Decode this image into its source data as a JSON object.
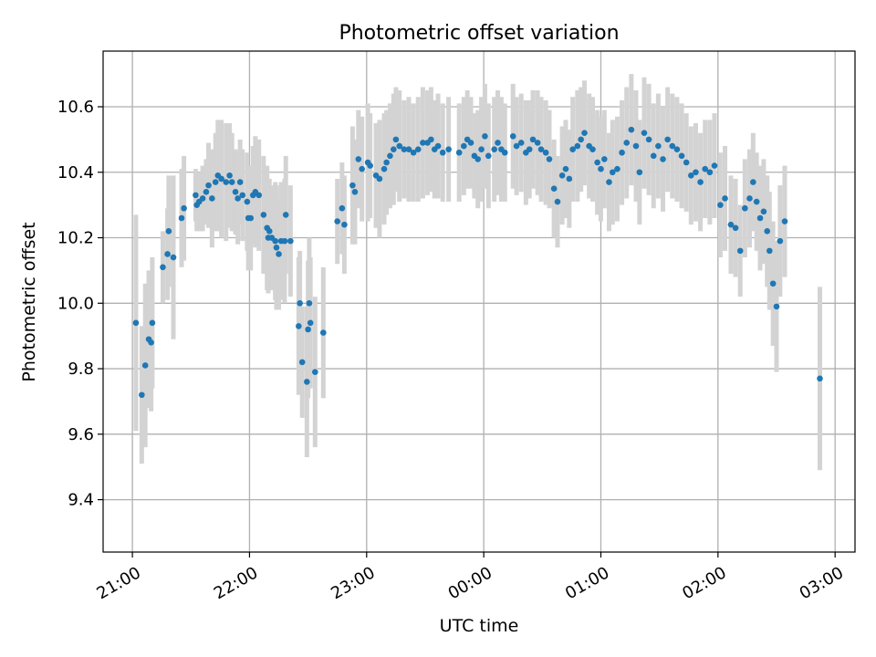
{
  "chart_data": {
    "type": "scatter",
    "title": "Photometric offset variation",
    "xlabel": "UTC time",
    "ylabel": "Photometric offset",
    "x_unit": "hours since 21:00 UTC",
    "xlim": [
      -0.25,
      6.17
    ],
    "ylim": [
      9.24,
      10.77
    ],
    "grid": true,
    "x_ticks": [
      {
        "value": 0,
        "label": "21:00"
      },
      {
        "value": 1,
        "label": "22:00"
      },
      {
        "value": 2,
        "label": "23:00"
      },
      {
        "value": 3,
        "label": "00:00"
      },
      {
        "value": 4,
        "label": "01:00"
      },
      {
        "value": 5,
        "label": "02:00"
      },
      {
        "value": 6,
        "label": "03:00"
      }
    ],
    "y_ticks": [
      {
        "value": 9.4,
        "label": "9.4"
      },
      {
        "value": 9.6,
        "label": "9.6"
      },
      {
        "value": 9.8,
        "label": "9.8"
      },
      {
        "value": 10.0,
        "label": "10.0"
      },
      {
        "value": 10.2,
        "label": "10.2"
      },
      {
        "value": 10.4,
        "label": "10.4"
      },
      {
        "value": 10.6,
        "label": "10.6"
      }
    ],
    "colors": {
      "points": "#1f77b4",
      "errorbars": "#d3d3d3",
      "grid": "#b0b0b0"
    },
    "series": [
      {
        "marker": "point",
        "error_type": "symmetric",
        "points": [
          {
            "x": 0.03,
            "y": 9.94,
            "err": 0.33
          },
          {
            "x": 0.08,
            "y": 9.72,
            "err": 0.21
          },
          {
            "x": 0.11,
            "y": 9.81,
            "err": 0.25
          },
          {
            "x": 0.14,
            "y": 9.89,
            "err": 0.21
          },
          {
            "x": 0.16,
            "y": 9.88,
            "err": 0.21
          },
          {
            "x": 0.17,
            "y": 9.94,
            "err": 0.2
          },
          {
            "x": 0.26,
            "y": 10.11,
            "err": 0.11
          },
          {
            "x": 0.3,
            "y": 10.15,
            "err": 0.14
          },
          {
            "x": 0.31,
            "y": 10.22,
            "err": 0.17
          },
          {
            "x": 0.35,
            "y": 10.14,
            "err": 0.25
          },
          {
            "x": 0.42,
            "y": 10.26,
            "err": 0.15
          },
          {
            "x": 0.44,
            "y": 10.29,
            "err": 0.16
          },
          {
            "x": 0.54,
            "y": 10.33,
            "err": 0.08
          },
          {
            "x": 0.55,
            "y": 10.3,
            "err": 0.08
          },
          {
            "x": 0.57,
            "y": 10.31,
            "err": 0.09
          },
          {
            "x": 0.6,
            "y": 10.32,
            "err": 0.1
          },
          {
            "x": 0.63,
            "y": 10.34,
            "err": 0.1
          },
          {
            "x": 0.65,
            "y": 10.36,
            "err": 0.13
          },
          {
            "x": 0.68,
            "y": 10.32,
            "err": 0.15
          },
          {
            "x": 0.71,
            "y": 10.37,
            "err": 0.15
          },
          {
            "x": 0.73,
            "y": 10.39,
            "err": 0.17
          },
          {
            "x": 0.76,
            "y": 10.38,
            "err": 0.18
          },
          {
            "x": 0.8,
            "y": 10.37,
            "err": 0.18
          },
          {
            "x": 0.83,
            "y": 10.39,
            "err": 0.16
          },
          {
            "x": 0.85,
            "y": 10.37,
            "err": 0.15
          },
          {
            "x": 0.88,
            "y": 10.34,
            "err": 0.13
          },
          {
            "x": 0.9,
            "y": 10.32,
            "err": 0.14
          },
          {
            "x": 0.92,
            "y": 10.37,
            "err": 0.13
          },
          {
            "x": 0.94,
            "y": 10.33,
            "err": 0.14
          },
          {
            "x": 0.98,
            "y": 10.31,
            "err": 0.15
          },
          {
            "x": 0.99,
            "y": 10.26,
            "err": 0.16
          },
          {
            "x": 1.01,
            "y": 10.26,
            "err": 0.16
          },
          {
            "x": 1.03,
            "y": 10.33,
            "err": 0.15
          },
          {
            "x": 1.05,
            "y": 10.34,
            "err": 0.17
          },
          {
            "x": 1.08,
            "y": 10.33,
            "err": 0.17
          },
          {
            "x": 1.12,
            "y": 10.27,
            "err": 0.18
          },
          {
            "x": 1.15,
            "y": 10.23,
            "err": 0.19
          },
          {
            "x": 1.16,
            "y": 10.2,
            "err": 0.17
          },
          {
            "x": 1.17,
            "y": 10.22,
            "err": 0.16
          },
          {
            "x": 1.19,
            "y": 10.2,
            "err": 0.16
          },
          {
            "x": 1.22,
            "y": 10.19,
            "err": 0.18
          },
          {
            "x": 1.23,
            "y": 10.17,
            "err": 0.19
          },
          {
            "x": 1.25,
            "y": 10.15,
            "err": 0.17
          },
          {
            "x": 1.27,
            "y": 10.19,
            "err": 0.18
          },
          {
            "x": 1.3,
            "y": 10.19,
            "err": 0.19
          },
          {
            "x": 1.31,
            "y": 10.27,
            "err": 0.18
          },
          {
            "x": 1.35,
            "y": 10.19,
            "err": 0.17
          },
          {
            "x": 1.42,
            "y": 9.93,
            "err": 0.21
          },
          {
            "x": 1.43,
            "y": 10.0,
            "err": 0.16
          },
          {
            "x": 1.45,
            "y": 9.82,
            "err": 0.17
          },
          {
            "x": 1.49,
            "y": 9.76,
            "err": 0.23
          },
          {
            "x": 1.5,
            "y": 9.92,
            "err": 0.21
          },
          {
            "x": 1.51,
            "y": 10.0,
            "err": 0.2
          },
          {
            "x": 1.52,
            "y": 9.94,
            "err": 0.2
          },
          {
            "x": 1.56,
            "y": 9.79,
            "err": 0.23
          },
          {
            "x": 1.63,
            "y": 9.91,
            "err": 0.2
          },
          {
            "x": 1.75,
            "y": 10.25,
            "err": 0.13
          },
          {
            "x": 1.79,
            "y": 10.29,
            "err": 0.14
          },
          {
            "x": 1.81,
            "y": 10.24,
            "err": 0.15
          },
          {
            "x": 1.88,
            "y": 10.36,
            "err": 0.18
          },
          {
            "x": 1.9,
            "y": 10.34,
            "err": 0.16
          },
          {
            "x": 1.93,
            "y": 10.44,
            "err": 0.15
          },
          {
            "x": 1.96,
            "y": 10.41,
            "err": 0.16
          },
          {
            "x": 2.01,
            "y": 10.43,
            "err": 0.18
          },
          {
            "x": 2.03,
            "y": 10.42,
            "err": 0.16
          },
          {
            "x": 2.08,
            "y": 10.39,
            "err": 0.16
          },
          {
            "x": 2.11,
            "y": 10.38,
            "err": 0.18
          },
          {
            "x": 2.15,
            "y": 10.41,
            "err": 0.17
          },
          {
            "x": 2.17,
            "y": 10.43,
            "err": 0.16
          },
          {
            "x": 2.2,
            "y": 10.45,
            "err": 0.16
          },
          {
            "x": 2.23,
            "y": 10.47,
            "err": 0.17
          },
          {
            "x": 2.25,
            "y": 10.5,
            "err": 0.16
          },
          {
            "x": 2.28,
            "y": 10.48,
            "err": 0.17
          },
          {
            "x": 2.32,
            "y": 10.47,
            "err": 0.15
          },
          {
            "x": 2.36,
            "y": 10.47,
            "err": 0.16
          },
          {
            "x": 2.4,
            "y": 10.46,
            "err": 0.15
          },
          {
            "x": 2.44,
            "y": 10.47,
            "err": 0.16
          },
          {
            "x": 2.48,
            "y": 10.49,
            "err": 0.17
          },
          {
            "x": 2.52,
            "y": 10.49,
            "err": 0.16
          },
          {
            "x": 2.55,
            "y": 10.5,
            "err": 0.16
          },
          {
            "x": 2.58,
            "y": 10.47,
            "err": 0.15
          },
          {
            "x": 2.61,
            "y": 10.48,
            "err": 0.16
          },
          {
            "x": 2.65,
            "y": 10.46,
            "err": 0.15
          },
          {
            "x": 2.7,
            "y": 10.47,
            "err": 0.16
          },
          {
            "x": 2.79,
            "y": 10.46,
            "err": 0.15
          },
          {
            "x": 2.83,
            "y": 10.48,
            "err": 0.15
          },
          {
            "x": 2.86,
            "y": 10.5,
            "err": 0.15
          },
          {
            "x": 2.89,
            "y": 10.49,
            "err": 0.14
          },
          {
            "x": 2.92,
            "y": 10.45,
            "err": 0.13
          },
          {
            "x": 2.95,
            "y": 10.44,
            "err": 0.15
          },
          {
            "x": 2.98,
            "y": 10.47,
            "err": 0.16
          },
          {
            "x": 3.01,
            "y": 10.51,
            "err": 0.16
          },
          {
            "x": 3.04,
            "y": 10.45,
            "err": 0.16
          },
          {
            "x": 3.09,
            "y": 10.47,
            "err": 0.16
          },
          {
            "x": 3.12,
            "y": 10.49,
            "err": 0.16
          },
          {
            "x": 3.15,
            "y": 10.47,
            "err": 0.16
          },
          {
            "x": 3.18,
            "y": 10.46,
            "err": 0.15
          },
          {
            "x": 3.25,
            "y": 10.51,
            "err": 0.16
          },
          {
            "x": 3.28,
            "y": 10.48,
            "err": 0.15
          },
          {
            "x": 3.32,
            "y": 10.49,
            "err": 0.15
          },
          {
            "x": 3.36,
            "y": 10.46,
            "err": 0.16
          },
          {
            "x": 3.39,
            "y": 10.47,
            "err": 0.15
          },
          {
            "x": 3.42,
            "y": 10.5,
            "err": 0.15
          },
          {
            "x": 3.46,
            "y": 10.49,
            "err": 0.16
          },
          {
            "x": 3.49,
            "y": 10.47,
            "err": 0.16
          },
          {
            "x": 3.53,
            "y": 10.46,
            "err": 0.16
          },
          {
            "x": 3.56,
            "y": 10.44,
            "err": 0.15
          },
          {
            "x": 3.6,
            "y": 10.35,
            "err": 0.15
          },
          {
            "x": 3.63,
            "y": 10.31,
            "err": 0.14
          },
          {
            "x": 3.67,
            "y": 10.39,
            "err": 0.15
          },
          {
            "x": 3.7,
            "y": 10.41,
            "err": 0.15
          },
          {
            "x": 3.73,
            "y": 10.38,
            "err": 0.15
          },
          {
            "x": 3.76,
            "y": 10.47,
            "err": 0.16
          },
          {
            "x": 3.8,
            "y": 10.48,
            "err": 0.17
          },
          {
            "x": 3.83,
            "y": 10.5,
            "err": 0.16
          },
          {
            "x": 3.86,
            "y": 10.52,
            "err": 0.16
          },
          {
            "x": 3.9,
            "y": 10.48,
            "err": 0.16
          },
          {
            "x": 3.93,
            "y": 10.47,
            "err": 0.16
          },
          {
            "x": 3.97,
            "y": 10.43,
            "err": 0.16
          },
          {
            "x": 4.0,
            "y": 10.41,
            "err": 0.16
          },
          {
            "x": 4.03,
            "y": 10.44,
            "err": 0.15
          },
          {
            "x": 4.07,
            "y": 10.37,
            "err": 0.15
          },
          {
            "x": 4.1,
            "y": 10.4,
            "err": 0.16
          },
          {
            "x": 4.14,
            "y": 10.41,
            "err": 0.16
          },
          {
            "x": 4.18,
            "y": 10.46,
            "err": 0.16
          },
          {
            "x": 4.22,
            "y": 10.49,
            "err": 0.17
          },
          {
            "x": 4.26,
            "y": 10.53,
            "err": 0.17
          },
          {
            "x": 4.3,
            "y": 10.48,
            "err": 0.17
          },
          {
            "x": 4.33,
            "y": 10.4,
            "err": 0.16
          },
          {
            "x": 4.37,
            "y": 10.52,
            "err": 0.17
          },
          {
            "x": 4.41,
            "y": 10.5,
            "err": 0.17
          },
          {
            "x": 4.45,
            "y": 10.45,
            "err": 0.16
          },
          {
            "x": 4.49,
            "y": 10.48,
            "err": 0.16
          },
          {
            "x": 4.53,
            "y": 10.44,
            "err": 0.16
          },
          {
            "x": 4.57,
            "y": 10.5,
            "err": 0.16
          },
          {
            "x": 4.61,
            "y": 10.48,
            "err": 0.16
          },
          {
            "x": 4.65,
            "y": 10.47,
            "err": 0.16
          },
          {
            "x": 4.69,
            "y": 10.45,
            "err": 0.16
          },
          {
            "x": 4.73,
            "y": 10.43,
            "err": 0.15
          },
          {
            "x": 4.77,
            "y": 10.39,
            "err": 0.15
          },
          {
            "x": 4.81,
            "y": 10.4,
            "err": 0.15
          },
          {
            "x": 4.85,
            "y": 10.37,
            "err": 0.15
          },
          {
            "x": 4.89,
            "y": 10.41,
            "err": 0.15
          },
          {
            "x": 4.93,
            "y": 10.4,
            "err": 0.16
          },
          {
            "x": 4.97,
            "y": 10.42,
            "err": 0.16
          },
          {
            "x": 5.02,
            "y": 10.3,
            "err": 0.16
          },
          {
            "x": 5.06,
            "y": 10.32,
            "err": 0.16
          },
          {
            "x": 5.11,
            "y": 10.24,
            "err": 0.15
          },
          {
            "x": 5.15,
            "y": 10.23,
            "err": 0.15
          },
          {
            "x": 5.19,
            "y": 10.16,
            "err": 0.14
          },
          {
            "x": 5.23,
            "y": 10.29,
            "err": 0.15
          },
          {
            "x": 5.27,
            "y": 10.32,
            "err": 0.15
          },
          {
            "x": 5.3,
            "y": 10.37,
            "err": 0.15
          },
          {
            "x": 5.33,
            "y": 10.31,
            "err": 0.15
          },
          {
            "x": 5.36,
            "y": 10.26,
            "err": 0.16
          },
          {
            "x": 5.39,
            "y": 10.28,
            "err": 0.16
          },
          {
            "x": 5.42,
            "y": 10.22,
            "err": 0.17
          },
          {
            "x": 5.44,
            "y": 10.16,
            "err": 0.18
          },
          {
            "x": 5.47,
            "y": 10.06,
            "err": 0.19
          },
          {
            "x": 5.5,
            "y": 9.99,
            "err": 0.2
          },
          {
            "x": 5.53,
            "y": 10.19,
            "err": 0.17
          },
          {
            "x": 5.57,
            "y": 10.25,
            "err": 0.17
          },
          {
            "x": 5.87,
            "y": 9.77,
            "err": 0.28
          }
        ]
      }
    ]
  }
}
